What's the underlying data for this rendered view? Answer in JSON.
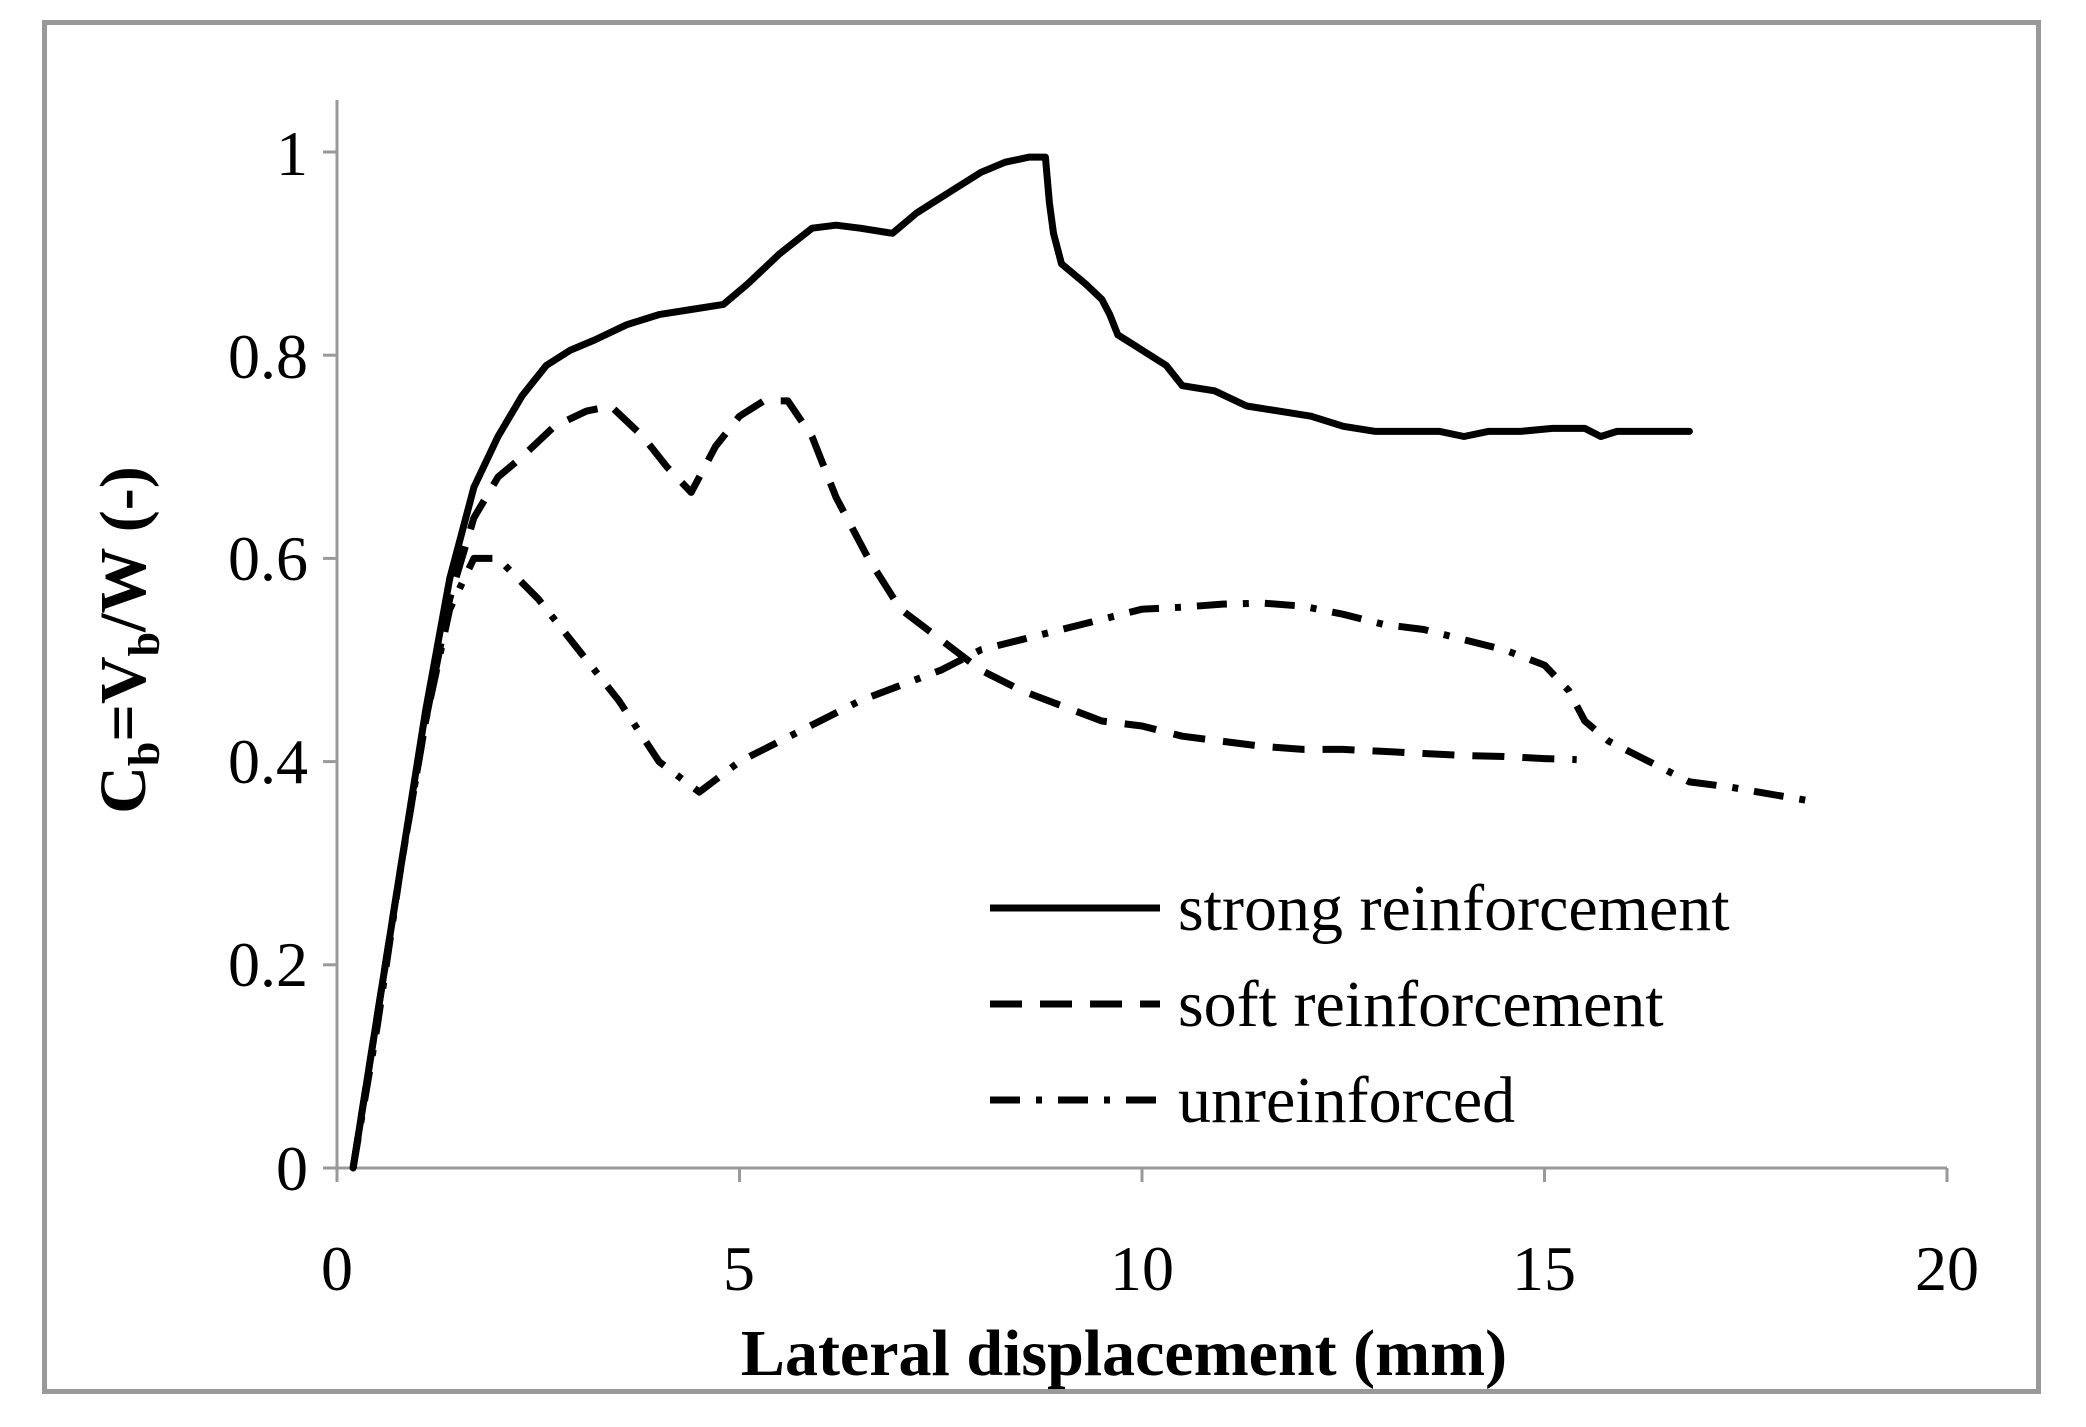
{
  "chart_data": {
    "type": "line",
    "title": "",
    "xlabel": "Lateral displacement (mm)",
    "ylabel": {
      "c": "C",
      "c_sub": "b",
      "eq": "=V",
      "v_sub": "b",
      "rest": "/W (-)"
    },
    "xlim": [
      0,
      20
    ],
    "ylim": [
      0,
      1
    ],
    "xticks": [
      0,
      5,
      10,
      15,
      20
    ],
    "xtick_labels": [
      "0",
      "5",
      "10",
      "15",
      "20"
    ],
    "yticks": [
      0,
      0.2,
      0.4,
      0.6,
      0.8,
      1
    ],
    "ytick_labels": [
      "0",
      "0.2",
      "0.4",
      "0.6",
      "0.8",
      "1"
    ],
    "grid": false,
    "legend_position": "bottom-right",
    "series": [
      {
        "name": "strong reinforcement",
        "style": "solid",
        "x": [
          0.2,
          0.5,
          0.8,
          1.1,
          1.4,
          1.7,
          2.0,
          2.3,
          2.6,
          2.9,
          3.2,
          3.6,
          4.0,
          4.4,
          4.8,
          5.1,
          5.5,
          5.9,
          6.2,
          6.5,
          6.9,
          7.2,
          7.6,
          8.0,
          8.3,
          8.6,
          8.8,
          8.85,
          8.9,
          9.0,
          9.3,
          9.5,
          9.6,
          9.7,
          9.9,
          10.1,
          10.3,
          10.5,
          10.9,
          11.3,
          11.7,
          12.1,
          12.5,
          12.9,
          13.3,
          13.7,
          14.0,
          14.3,
          14.7,
          15.1,
          15.5,
          15.7,
          15.9,
          16.3,
          16.8
        ],
        "y": [
          0.0,
          0.15,
          0.3,
          0.45,
          0.58,
          0.67,
          0.72,
          0.76,
          0.79,
          0.805,
          0.815,
          0.83,
          0.84,
          0.845,
          0.85,
          0.87,
          0.9,
          0.925,
          0.928,
          0.925,
          0.92,
          0.94,
          0.96,
          0.98,
          0.99,
          0.995,
          0.995,
          0.95,
          0.92,
          0.89,
          0.87,
          0.855,
          0.84,
          0.82,
          0.81,
          0.8,
          0.79,
          0.77,
          0.765,
          0.75,
          0.745,
          0.74,
          0.73,
          0.725,
          0.725,
          0.725,
          0.72,
          0.725,
          0.725,
          0.728,
          0.728,
          0.72,
          0.725,
          0.725,
          0.725
        ]
      },
      {
        "name": "soft reinforcement",
        "style": "dashed",
        "x": [
          0.2,
          0.5,
          0.8,
          1.1,
          1.4,
          1.7,
          2.0,
          2.3,
          2.7,
          3.1,
          3.4,
          3.8,
          4.1,
          4.4,
          4.7,
          5.0,
          5.3,
          5.6,
          5.9,
          6.2,
          6.6,
          7.0,
          7.5,
          8.0,
          8.5,
          9.0,
          9.5,
          10.0,
          10.5,
          11.0,
          11.5,
          12.0,
          12.5,
          13.0,
          13.5,
          14.0,
          14.5,
          15.0,
          15.4
        ],
        "y": [
          0.0,
          0.15,
          0.3,
          0.44,
          0.56,
          0.64,
          0.68,
          0.7,
          0.73,
          0.745,
          0.75,
          0.72,
          0.69,
          0.665,
          0.71,
          0.74,
          0.755,
          0.755,
          0.72,
          0.66,
          0.6,
          0.55,
          0.52,
          0.49,
          0.47,
          0.455,
          0.44,
          0.435,
          0.425,
          0.42,
          0.415,
          0.412,
          0.412,
          0.41,
          0.408,
          0.406,
          0.405,
          0.403,
          0.402
        ]
      },
      {
        "name": "unreinforced",
        "style": "dashdot",
        "x": [
          0.2,
          0.5,
          0.8,
          1.1,
          1.4,
          1.7,
          2.0,
          2.5,
          3.0,
          3.5,
          4.0,
          4.5,
          5.0,
          5.5,
          6.0,
          6.5,
          7.0,
          7.5,
          8.0,
          8.5,
          9.0,
          9.5,
          10.0,
          10.5,
          11.0,
          11.5,
          12.0,
          12.5,
          13.0,
          13.5,
          14.0,
          14.5,
          15.0,
          15.3,
          15.5,
          15.8,
          16.3,
          16.8,
          17.3,
          17.8,
          18.4
        ],
        "y": [
          0.0,
          0.14,
          0.3,
          0.44,
          0.55,
          0.6,
          0.6,
          0.56,
          0.51,
          0.46,
          0.4,
          0.37,
          0.4,
          0.42,
          0.44,
          0.46,
          0.475,
          0.49,
          0.51,
          0.52,
          0.53,
          0.54,
          0.55,
          0.552,
          0.555,
          0.556,
          0.553,
          0.545,
          0.535,
          0.53,
          0.52,
          0.51,
          0.495,
          0.47,
          0.44,
          0.42,
          0.4,
          0.38,
          0.375,
          0.368,
          0.36
        ]
      }
    ]
  },
  "style": {
    "line_color": "#000000",
    "axis_color": "#999999",
    "frame_color": "#999999"
  }
}
